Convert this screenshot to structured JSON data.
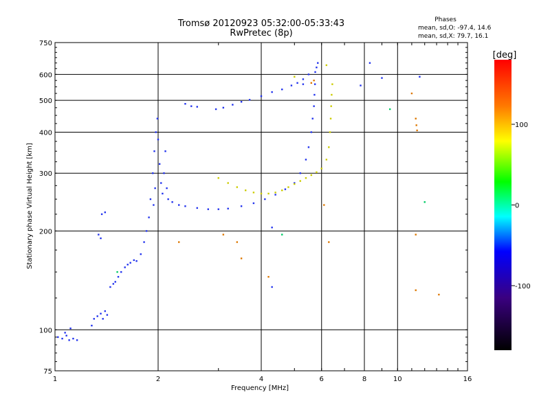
{
  "chart_data": {
    "type": "scatter",
    "title": "Tromsø 20120923 05:32:00-05:33:43",
    "subtitle": "RwPretec (8p)",
    "xlabel": "Frequency [MHz]",
    "ylabel": "Stationary phase Virtual Height [km]",
    "x_scale": "log",
    "y_scale": "log",
    "xlim": [
      1,
      16
    ],
    "ylim": [
      75,
      750
    ],
    "x_ticks": [
      1,
      2,
      4,
      6,
      8,
      10,
      16
    ],
    "y_ticks": [
      75,
      100,
      200,
      300,
      400,
      500,
      600,
      750
    ],
    "grid": true,
    "stats": {
      "heading": "Phases",
      "o_line": "mean, sd,O: -97.4, 14.6",
      "x_line": "mean, sd,X:  79.7, 16.1"
    },
    "colorbar": {
      "label": "[deg]",
      "range": [
        -180,
        180
      ],
      "ticks": [
        100,
        0,
        -100
      ],
      "colors": [
        "#ff0000",
        "#ffff00",
        "#00ff00",
        "#00ffff",
        "#0000ff",
        "#000000"
      ]
    },
    "series": [
      {
        "color": "#2233ee",
        "points": [
          [
            1.02,
            95
          ],
          [
            1.05,
            94
          ],
          [
            1.08,
            96
          ],
          [
            1.1,
            93
          ],
          [
            1.13,
            94
          ],
          [
            1.16,
            93
          ],
          [
            1.07,
            98
          ],
          [
            1.11,
            101
          ],
          [
            1.28,
            103
          ],
          [
            1.3,
            108
          ],
          [
            1.33,
            110
          ],
          [
            1.36,
            112
          ],
          [
            1.4,
            114
          ],
          [
            1.38,
            108
          ],
          [
            1.42,
            111
          ],
          [
            1.34,
            195
          ],
          [
            1.36,
            190
          ],
          [
            1.37,
            225
          ],
          [
            1.4,
            228
          ],
          [
            1.45,
            135
          ],
          [
            1.48,
            138
          ],
          [
            1.5,
            140
          ],
          [
            1.53,
            145
          ],
          [
            1.56,
            150
          ],
          [
            1.6,
            155
          ],
          [
            1.63,
            158
          ],
          [
            1.66,
            160
          ],
          [
            1.7,
            163
          ],
          [
            1.73,
            162
          ],
          [
            1.78,
            170
          ],
          [
            1.82,
            185
          ],
          [
            1.85,
            200
          ],
          [
            1.88,
            220
          ],
          [
            1.9,
            250
          ],
          [
            1.93,
            300
          ],
          [
            1.95,
            350
          ],
          [
            1.97,
            400
          ],
          [
            1.99,
            440
          ],
          [
            2.0,
            380
          ],
          [
            2.02,
            320
          ],
          [
            2.04,
            280
          ],
          [
            2.06,
            260
          ],
          [
            2.08,
            300
          ],
          [
            2.1,
            350
          ],
          [
            2.12,
            270
          ],
          [
            1.96,
            270
          ],
          [
            1.94,
            240
          ],
          [
            2.14,
            250
          ],
          [
            2.2,
            245
          ],
          [
            2.3,
            240
          ],
          [
            2.4,
            238
          ],
          [
            2.6,
            235
          ],
          [
            2.8,
            233
          ],
          [
            3.0,
            233
          ],
          [
            3.2,
            234
          ],
          [
            3.5,
            238
          ],
          [
            3.8,
            243
          ],
          [
            4.1,
            250
          ],
          [
            4.4,
            258
          ],
          [
            4.7,
            268
          ],
          [
            5.0,
            280
          ],
          [
            5.2,
            300
          ],
          [
            5.4,
            330
          ],
          [
            5.5,
            360
          ],
          [
            5.6,
            400
          ],
          [
            5.65,
            440
          ],
          [
            5.7,
            480
          ],
          [
            5.72,
            520
          ],
          [
            5.74,
            560
          ],
          [
            5.5,
            600
          ],
          [
            5.3,
            580
          ],
          [
            5.1,
            565
          ],
          [
            4.9,
            555
          ],
          [
            4.6,
            540
          ],
          [
            4.3,
            530
          ],
          [
            4.0,
            515
          ],
          [
            3.7,
            502
          ],
          [
            3.5,
            495
          ],
          [
            3.3,
            485
          ],
          [
            3.1,
            475
          ],
          [
            2.95,
            470
          ],
          [
            2.6,
            478
          ],
          [
            2.5,
            480
          ],
          [
            2.4,
            488
          ],
          [
            5.75,
            610
          ],
          [
            5.8,
            630
          ],
          [
            5.85,
            650
          ],
          [
            4.3,
            205
          ],
          [
            4.3,
            135
          ],
          [
            8.3,
            650
          ],
          [
            9.0,
            585
          ],
          [
            7.8,
            555
          ],
          [
            11.6,
            590
          ],
          [
            5.3,
            560
          ]
        ]
      },
      {
        "color": "#cccc00",
        "points": [
          [
            3.0,
            290
          ],
          [
            3.2,
            280
          ],
          [
            3.4,
            272
          ],
          [
            3.6,
            266
          ],
          [
            3.8,
            262
          ],
          [
            4.0,
            260
          ],
          [
            4.2,
            260
          ],
          [
            4.4,
            262
          ],
          [
            4.6,
            266
          ],
          [
            4.8,
            272
          ],
          [
            5.0,
            278
          ],
          [
            5.2,
            284
          ],
          [
            5.4,
            290
          ],
          [
            5.6,
            296
          ],
          [
            5.8,
            302
          ],
          [
            6.0,
            310
          ],
          [
            6.2,
            330
          ],
          [
            6.3,
            360
          ],
          [
            6.35,
            400
          ],
          [
            6.38,
            440
          ],
          [
            6.4,
            480
          ],
          [
            6.42,
            520
          ],
          [
            6.45,
            560
          ],
          [
            6.2,
            640
          ],
          [
            5.0,
            590
          ]
        ]
      },
      {
        "color": "#dd7700",
        "points": [
          [
            2.3,
            185
          ],
          [
            3.1,
            195
          ],
          [
            3.4,
            185
          ],
          [
            3.5,
            165
          ],
          [
            4.2,
            145
          ],
          [
            6.1,
            240
          ],
          [
            6.3,
            185
          ],
          [
            11.0,
            525
          ],
          [
            11.3,
            440
          ],
          [
            11.35,
            420
          ],
          [
            11.4,
            405
          ],
          [
            11.3,
            195
          ],
          [
            11.3,
            132
          ],
          [
            13.2,
            128
          ],
          [
            5.6,
            565
          ],
          [
            5.7,
            575
          ]
        ]
      },
      {
        "color": "#00cc66",
        "points": [
          [
            4.6,
            195
          ],
          [
            9.5,
            470
          ],
          [
            12.0,
            245
          ],
          [
            1.52,
            150
          ]
        ]
      }
    ]
  }
}
